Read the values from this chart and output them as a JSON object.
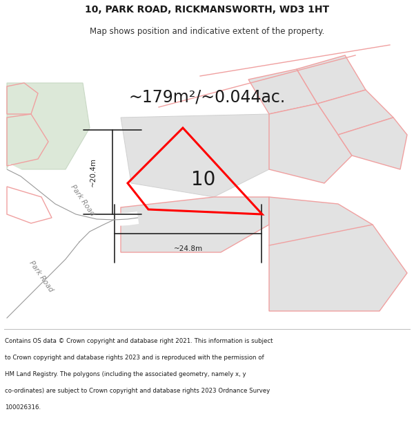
{
  "title": "10, PARK ROAD, RICKMANSWORTH, WD3 1HT",
  "subtitle": "Map shows position and indicative extent of the property.",
  "area_text": "~179m²/~0.044ac.",
  "property_number": "10",
  "dim_horizontal": "~24.8m",
  "dim_vertical": "~20.4m",
  "road_label_upper": "Park Road",
  "road_label_lower": "Park Road",
  "footer_lines": [
    "Contains OS data © Crown copyright and database right 2021. This information is subject",
    "to Crown copyright and database rights 2023 and is reproduced with the permission of",
    "HM Land Registry. The polygons (including the associated geometry, namely x, y",
    "co-ordinates) are subject to Crown copyright and database rights 2023 Ordnance Survey",
    "100026316."
  ],
  "bg_color": "#ffffff",
  "map_bg": "#f7f7f7",
  "property_outline": "#ff0000",
  "other_fill": "#e2e2e2",
  "other_outline": "#f0a0a0",
  "green_fill": "#dce8d8",
  "green_outline": "#c8d8c4",
  "dim_color": "#222222",
  "road_gray": "#999999",
  "title_fontsize": 10,
  "subtitle_fontsize": 8.5,
  "area_fontsize": 17,
  "number_fontsize": 20,
  "footer_fontsize": 6.2
}
